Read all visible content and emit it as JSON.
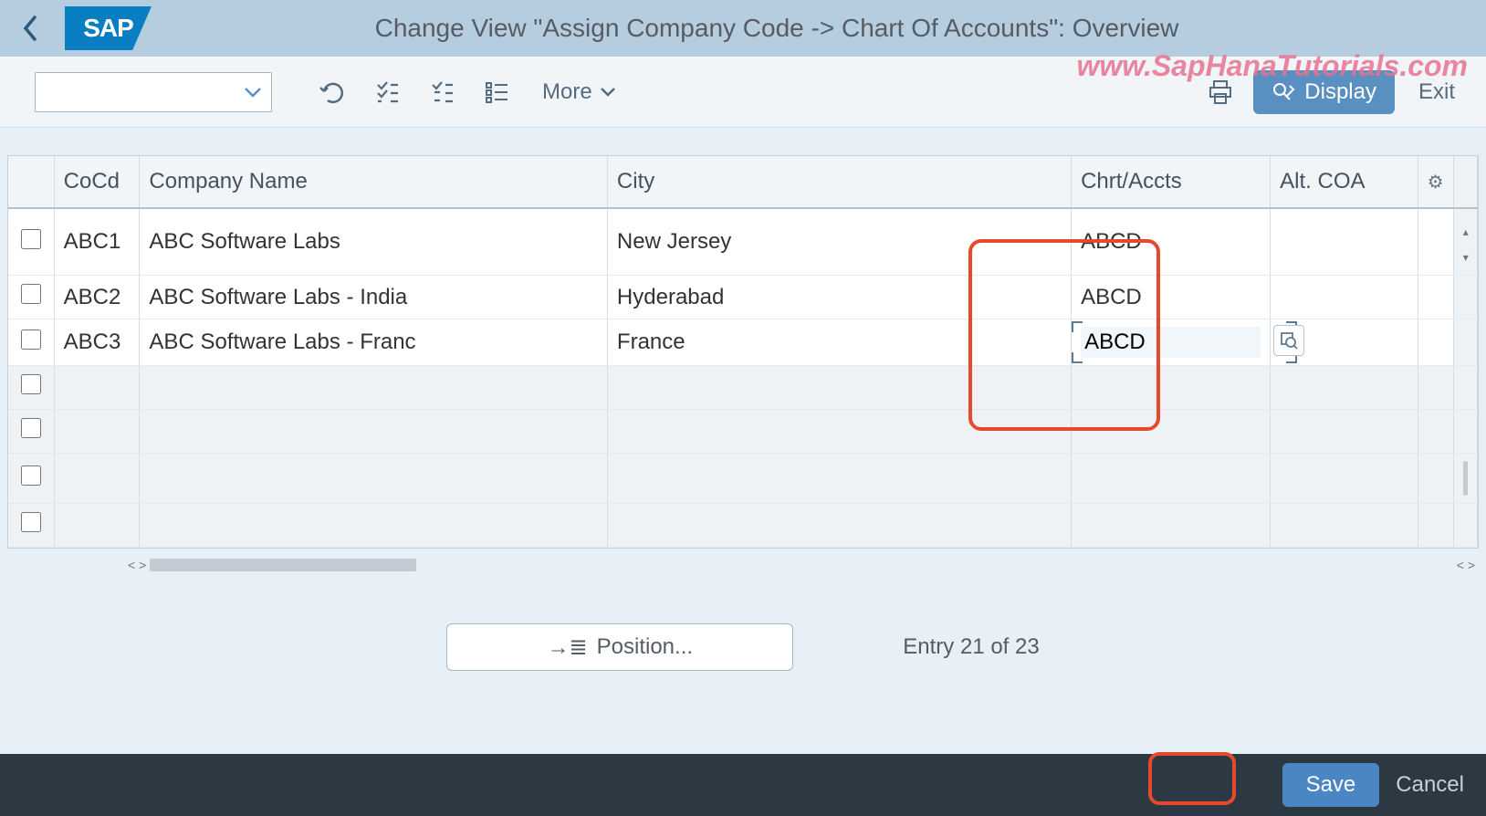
{
  "brand": "SAP",
  "page_title": "Change View \"Assign Company Code -> Chart Of Accounts\": Overview",
  "watermark": "www.SapHanaTutorials.com",
  "toolbar": {
    "more_label": "More",
    "display_label": "Display",
    "exit_label": "Exit"
  },
  "table": {
    "columns": {
      "cocd": "CoCd",
      "name": "Company Name",
      "city": "City",
      "chrt": "Chrt/Accts",
      "alt": "Alt. COA"
    },
    "rows": [
      {
        "cocd": "ABC1",
        "name": "ABC Software Labs",
        "city": "New Jersey",
        "chrt": "ABCD",
        "alt": "",
        "editing": false
      },
      {
        "cocd": "ABC2",
        "name": "ABC Software Labs - India",
        "city": "Hyderabad",
        "chrt": "ABCD",
        "alt": "",
        "editing": false
      },
      {
        "cocd": "ABC3",
        "name": "ABC Software Labs - Franc",
        "city": "France",
        "chrt": "ABCD",
        "alt": "",
        "editing": true
      }
    ],
    "empty_rows": 4
  },
  "position_button": "Position...",
  "entry_status": "Entry 21 of 23",
  "footer": {
    "save": "Save",
    "cancel": "Cancel"
  },
  "highlights": {
    "chrt_column": "#e64a2e",
    "save_button": "#e64a2e"
  },
  "colors": {
    "header_bg": "#b5cdde",
    "primary_button": "#5a8fc2",
    "save_button": "#4b86c4",
    "footer_bg": "#2c3942"
  }
}
